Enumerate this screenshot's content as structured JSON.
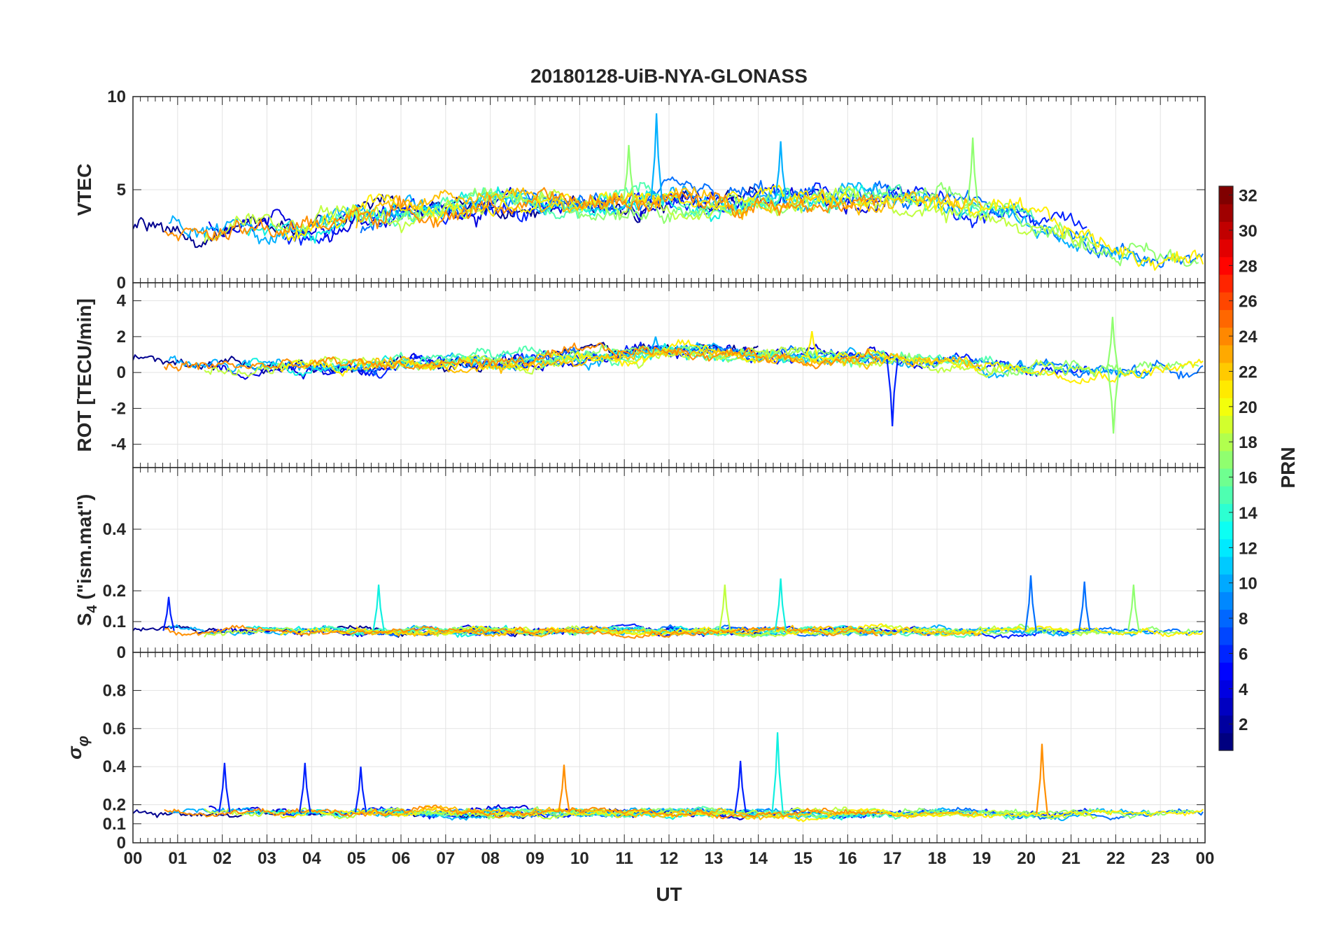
{
  "chart_data": {
    "type": "line",
    "title": "20180128-UiB-NYA-GLONASS",
    "xlabel": "UT",
    "x_ticks": [
      "00",
      "01",
      "02",
      "03",
      "04",
      "05",
      "06",
      "07",
      "08",
      "09",
      "10",
      "11",
      "12",
      "13",
      "14",
      "15",
      "16",
      "17",
      "18",
      "19",
      "20",
      "21",
      "22",
      "23",
      "00"
    ],
    "x_range_hours": [
      0,
      24
    ],
    "grid": true,
    "panels": [
      {
        "id": "vtec",
        "ylabel": "VTEC",
        "ylim": [
          0,
          10
        ],
        "yticks": [
          0,
          5,
          10
        ],
        "ytick_labels": [
          "0",
          "5",
          "10"
        ],
        "trend": [
          [
            0,
            2.7
          ],
          [
            1,
            2.8
          ],
          [
            2,
            2.6
          ],
          [
            3,
            2.7
          ],
          [
            4,
            3.0
          ],
          [
            5,
            3.6
          ],
          [
            6,
            3.9
          ],
          [
            7,
            3.9
          ],
          [
            8,
            4.2
          ],
          [
            9,
            4.2
          ],
          [
            10,
            4.1
          ],
          [
            11,
            4.4
          ],
          [
            12,
            4.5
          ],
          [
            13,
            4.1
          ],
          [
            14,
            4.6
          ],
          [
            15,
            4.4
          ],
          [
            16,
            4.6
          ],
          [
            17,
            4.5
          ],
          [
            18,
            4.3
          ],
          [
            19,
            4.0
          ],
          [
            20,
            3.3
          ],
          [
            21,
            2.6
          ],
          [
            22,
            1.9
          ],
          [
            23,
            1.4
          ],
          [
            24,
            1.2
          ]
        ],
        "amplitude": 1.5,
        "peaks": [
          {
            "hour": 11.72,
            "value": 9.1,
            "prn": 10
          },
          {
            "hour": 11.1,
            "value": 7.4,
            "prn": 16
          },
          {
            "hour": 14.5,
            "value": 7.6,
            "prn": 11
          },
          {
            "hour": 18.8,
            "value": 7.8,
            "prn": 16
          }
        ]
      },
      {
        "id": "rot",
        "ylabel": "ROT [TECU/min]",
        "ylim": [
          -5.3,
          5
        ],
        "yticks": [
          -4,
          -2,
          0,
          2,
          4
        ],
        "ytick_labels": [
          "-4",
          "-2",
          "0",
          "2",
          "4"
        ],
        "trend": [
          [
            0,
            0.4
          ],
          [
            4,
            0.35
          ],
          [
            8,
            0.6
          ],
          [
            11,
            1.0
          ],
          [
            12,
            1.3
          ],
          [
            14,
            1.0
          ],
          [
            16,
            0.9
          ],
          [
            18,
            0.6
          ],
          [
            20,
            0.2
          ],
          [
            22,
            0.15
          ],
          [
            24,
            0.4
          ]
        ],
        "amplitude": 1.0,
        "peaks": [
          {
            "hour": 21.93,
            "value": 3.1,
            "prn": 17
          },
          {
            "hour": 21.95,
            "value": -3.4,
            "prn": 17
          },
          {
            "hour": 17.0,
            "value": -3.0,
            "prn": 3
          },
          {
            "hour": 15.2,
            "value": 2.3,
            "prn": 20
          },
          {
            "hour": 11.7,
            "value": 2.0,
            "prn": 10
          }
        ]
      },
      {
        "id": "s4",
        "ylabel": "S4 (\"ism.mat\")",
        "ylim": [
          0,
          0.6
        ],
        "yticks": [
          0,
          0.1,
          0.2,
          0.4
        ],
        "ytick_labels": [
          "0",
          "0.1",
          "0.2",
          "0.4"
        ],
        "trend": [
          [
            0,
            0.07
          ],
          [
            6,
            0.07
          ],
          [
            12,
            0.07
          ],
          [
            18,
            0.07
          ],
          [
            24,
            0.07
          ]
        ],
        "amplitude": 0.03,
        "peaks": [
          {
            "hour": 5.5,
            "value": 0.22,
            "prn": 12
          },
          {
            "hour": 13.25,
            "value": 0.22,
            "prn": 19
          },
          {
            "hour": 14.5,
            "value": 0.24,
            "prn": 12
          },
          {
            "hour": 20.1,
            "value": 0.25,
            "prn": 9
          },
          {
            "hour": 21.3,
            "value": 0.23,
            "prn": 8
          },
          {
            "hour": 22.4,
            "value": 0.22,
            "prn": 17
          },
          {
            "hour": 0.8,
            "value": 0.18,
            "prn": 3
          }
        ]
      },
      {
        "id": "sigma",
        "ylabel": "σφ",
        "ylim": [
          0,
          1
        ],
        "yticks": [
          0,
          0.1,
          0.2,
          0.4,
          0.6,
          0.8
        ],
        "ytick_labels": [
          "0",
          "0.1",
          "0.2",
          "0.4",
          "0.6",
          "0.8"
        ],
        "trend": [
          [
            0,
            0.16
          ],
          [
            6,
            0.16
          ],
          [
            12,
            0.16
          ],
          [
            18,
            0.15
          ],
          [
            24,
            0.16
          ]
        ],
        "amplitude": 0.05,
        "peaks": [
          {
            "hour": 14.43,
            "value": 0.58,
            "prn": 12
          },
          {
            "hour": 20.35,
            "value": 0.52,
            "prn": 23
          },
          {
            "hour": 13.6,
            "value": 0.43,
            "prn": 3
          },
          {
            "hour": 2.05,
            "value": 0.42,
            "prn": 3
          },
          {
            "hour": 3.85,
            "value": 0.42,
            "prn": 3
          },
          {
            "hour": 9.65,
            "value": 0.41,
            "prn": 23
          },
          {
            "hour": 5.1,
            "value": 0.4,
            "prn": 3
          }
        ]
      }
    ],
    "series": [
      {
        "prn": 1,
        "color": "#00008f"
      },
      {
        "prn": 2,
        "color": "#0000df"
      },
      {
        "prn": 3,
        "color": "#0020ff"
      },
      {
        "prn": 8,
        "color": "#0070ff"
      },
      {
        "prn": 10,
        "color": "#00b0ff"
      },
      {
        "prn": 12,
        "color": "#10f0e0"
      },
      {
        "prn": 14,
        "color": "#50ffb0"
      },
      {
        "prn": 16,
        "color": "#90ff70"
      },
      {
        "prn": 18,
        "color": "#c0ff40"
      },
      {
        "prn": 20,
        "color": "#ffef00"
      },
      {
        "prn": 22,
        "color": "#ffbf00"
      },
      {
        "prn": 23,
        "color": "#ff8f00"
      }
    ],
    "colorbar": {
      "label": "PRN",
      "range": [
        1,
        32
      ],
      "tick_values": [
        2,
        4,
        6,
        8,
        10,
        12,
        14,
        16,
        18,
        20,
        22,
        24,
        26,
        28,
        30,
        32
      ],
      "tick_labels": [
        "2",
        "4",
        "6",
        "8",
        "10",
        "12",
        "14",
        "16",
        "18",
        "20",
        "22",
        "24",
        "26",
        "28",
        "30",
        "32"
      ],
      "colormap": "jet"
    }
  }
}
